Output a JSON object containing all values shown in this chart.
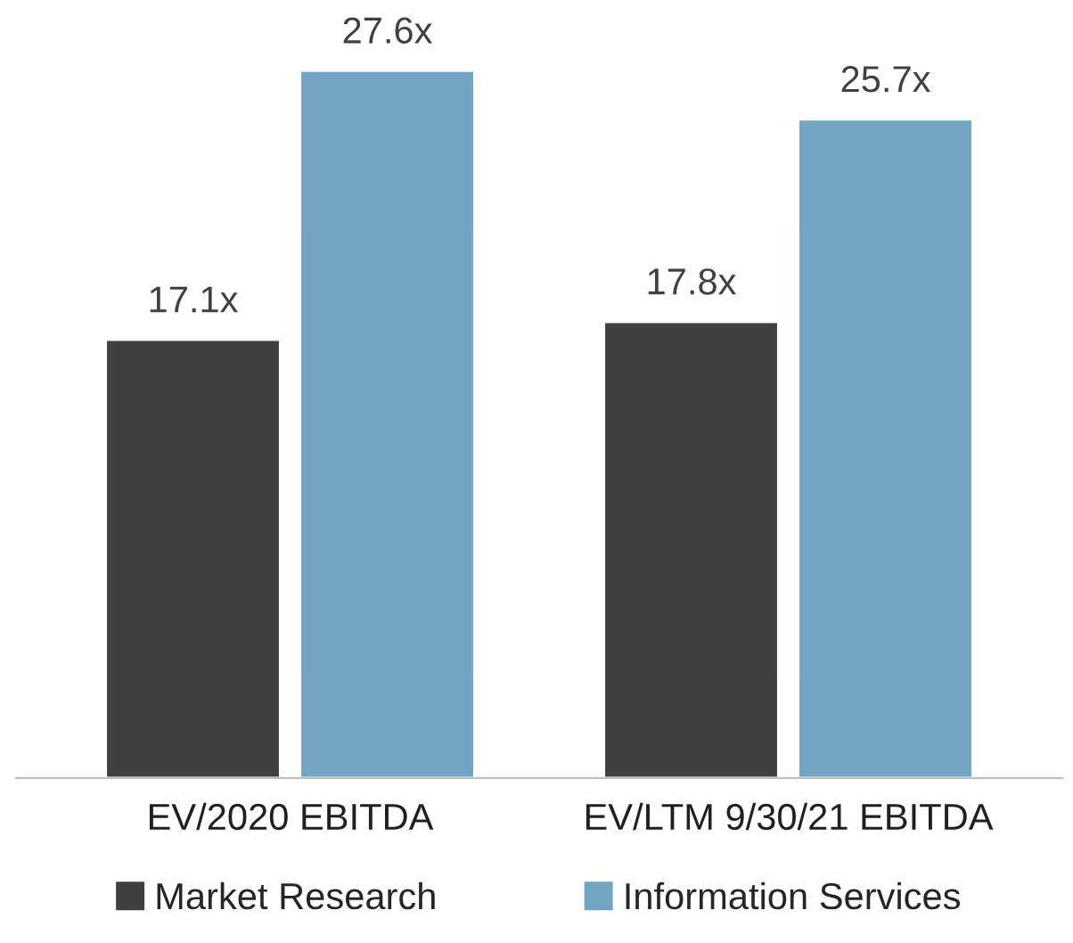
{
  "chart_data": {
    "type": "bar",
    "categories": [
      "EV/2020 EBITDA",
      "EV/LTM 9/30/21 EBITDA"
    ],
    "series": [
      {
        "name": "Market Research",
        "color": "#404040",
        "values": [
          17.1,
          17.8
        ],
        "value_labels": [
          "17.1x",
          "17.8x"
        ]
      },
      {
        "name": "Information Services",
        "color": "#71a5c3",
        "values": [
          27.6,
          25.7
        ],
        "value_labels": [
          "27.6x",
          "25.7x"
        ]
      }
    ],
    "legend": "bottom",
    "grid": false
  }
}
